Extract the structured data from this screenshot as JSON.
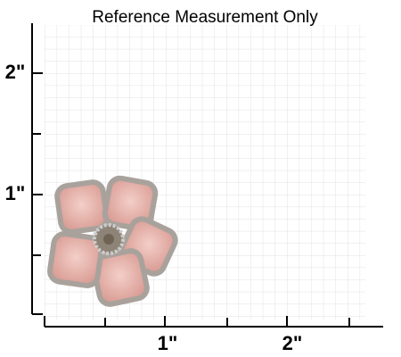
{
  "title": "Reference Measurement Only",
  "vertical_labels": [
    "2\"",
    "1\""
  ],
  "horizontal_labels": [
    "1\"",
    "2\""
  ]
}
